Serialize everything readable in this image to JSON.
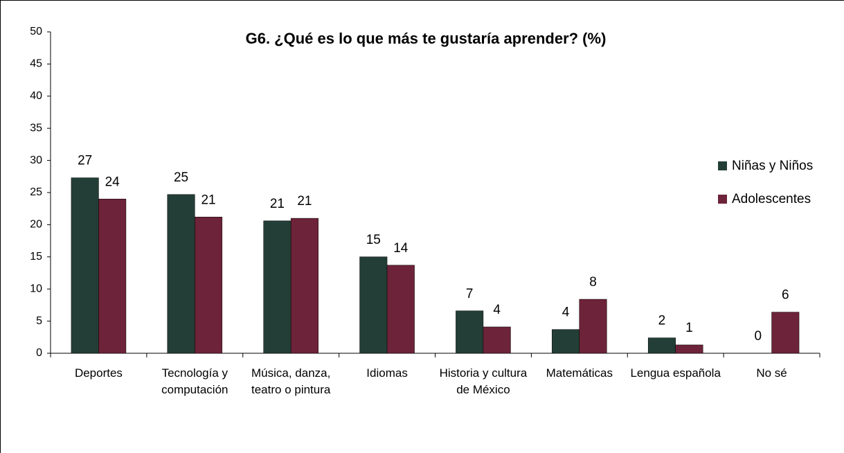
{
  "chart_data": {
    "type": "bar",
    "title": "G6. ¿Qué es lo que más te gustaría aprender? (%)",
    "categories": [
      "Deportes",
      "Tecnología y computación",
      "Música, danza, teatro o pintura",
      "Idiomas",
      "Historia y cultura de México",
      "Matemáticas",
      "Lengua española",
      "No sé"
    ],
    "series": [
      {
        "name": "Niñas y Niños",
        "color": "#233e36",
        "values": [
          27.3,
          24.7,
          20.6,
          15.0,
          6.6,
          3.7,
          2.4,
          0
        ],
        "value_labels": [
          "27",
          "25",
          "21",
          "15",
          "7",
          "4",
          "2",
          "0"
        ]
      },
      {
        "name": "Adolescentes",
        "color": "#6d2339",
        "values": [
          24.0,
          21.2,
          21.0,
          13.7,
          4.1,
          8.4,
          1.3,
          6.4
        ],
        "value_labels": [
          "24",
          "21",
          "21",
          "14",
          "4",
          "8",
          "1",
          "6"
        ]
      }
    ],
    "ylim": [
      0,
      50
    ],
    "yticks": [
      0,
      5,
      10,
      15,
      20,
      25,
      30,
      35,
      40,
      45,
      50
    ],
    "legend": "right"
  }
}
